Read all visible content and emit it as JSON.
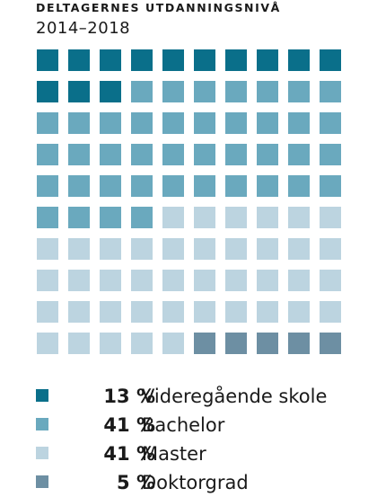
{
  "title": "DELTAGERNES UTDANNINGSNIVÅ",
  "subtitle": "2014–2018",
  "chart_data": {
    "type": "waffle",
    "rows": 10,
    "columns": 10,
    "categories": [
      {
        "label": "Videregående skole",
        "percent_text": "13 %",
        "value": 13,
        "color": "#0a6f8a"
      },
      {
        "label": "Bachelor",
        "percent_text": "41 %",
        "value": 41,
        "color": "#6aa9be"
      },
      {
        "label": "Master",
        "percent_text": "41 %",
        "value": 41,
        "color": "#bcd4e0"
      },
      {
        "label": "Doktorgrad",
        "percent_text": "5 %",
        "value": 5,
        "color": "#6d8fa3"
      }
    ]
  }
}
